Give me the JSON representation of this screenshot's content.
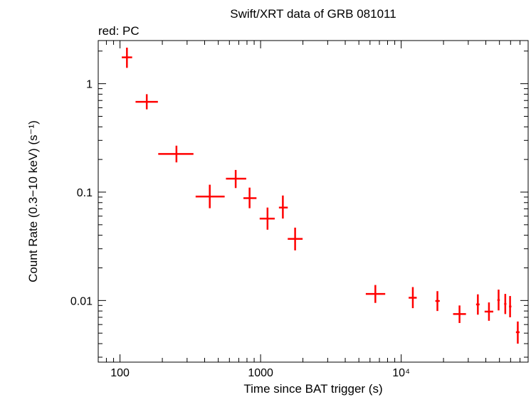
{
  "chart_data": {
    "type": "scatter",
    "title": "Swift/XRT data of GRB 081011",
    "subtitle": "red: PC",
    "xlabel": "Time since BAT trigger (s)",
    "ylabel": "Count Rate (0.3−10 keV) (s⁻¹)",
    "x_scale": "log",
    "y_scale": "log",
    "xlim": [
      70,
      80000
    ],
    "ylim": [
      0.0027,
      2.5
    ],
    "x_ticks": [
      {
        "value": 100,
        "label": "100"
      },
      {
        "value": 1000,
        "label": "1000"
      },
      {
        "value": 10000,
        "label": "10⁴"
      }
    ],
    "y_ticks": [
      {
        "value": 1,
        "label": "1"
      },
      {
        "value": 0.1,
        "label": "0.1"
      },
      {
        "value": 0.01,
        "label": "0.01"
      }
    ],
    "grid": false,
    "series": [
      {
        "name": "PC",
        "color": "#ff0000",
        "points": [
          {
            "x": 112,
            "xlo": 103,
            "xhi": 122,
            "y": 1.75,
            "ylo": 1.4,
            "yhi": 2.15
          },
          {
            "x": 155,
            "xlo": 129,
            "xhi": 186,
            "y": 0.68,
            "ylo": 0.58,
            "yhi": 0.8
          },
          {
            "x": 252,
            "xlo": 187,
            "xhi": 333,
            "y": 0.225,
            "ylo": 0.188,
            "yhi": 0.268
          },
          {
            "x": 435,
            "xlo": 345,
            "xhi": 555,
            "y": 0.091,
            "ylo": 0.071,
            "yhi": 0.117
          },
          {
            "x": 665,
            "xlo": 567,
            "xhi": 790,
            "y": 0.133,
            "ylo": 0.109,
            "yhi": 0.16
          },
          {
            "x": 835,
            "xlo": 755,
            "xhi": 935,
            "y": 0.088,
            "ylo": 0.071,
            "yhi": 0.11
          },
          {
            "x": 1120,
            "xlo": 985,
            "xhi": 1260,
            "y": 0.057,
            "ylo": 0.045,
            "yhi": 0.072
          },
          {
            "x": 1440,
            "xlo": 1350,
            "xhi": 1560,
            "y": 0.072,
            "ylo": 0.057,
            "yhi": 0.093
          },
          {
            "x": 1760,
            "xlo": 1560,
            "xhi": 1990,
            "y": 0.037,
            "ylo": 0.029,
            "yhi": 0.047
          },
          {
            "x": 6550,
            "xlo": 5600,
            "xhi": 7700,
            "y": 0.0115,
            "ylo": 0.0095,
            "yhi": 0.0139
          },
          {
            "x": 12100,
            "xlo": 11300,
            "xhi": 12900,
            "y": 0.0106,
            "ylo": 0.0085,
            "yhi": 0.0133
          },
          {
            "x": 18100,
            "xlo": 17500,
            "xhi": 18800,
            "y": 0.0099,
            "ylo": 0.008,
            "yhi": 0.0122
          },
          {
            "x": 26000,
            "xlo": 23400,
            "xhi": 28900,
            "y": 0.0075,
            "ylo": 0.0062,
            "yhi": 0.009
          },
          {
            "x": 35100,
            "xlo": 34100,
            "xhi": 36100,
            "y": 0.0092,
            "ylo": 0.0074,
            "yhi": 0.0114
          },
          {
            "x": 42100,
            "xlo": 39200,
            "xhi": 45200,
            "y": 0.0079,
            "ylo": 0.0065,
            "yhi": 0.0096
          },
          {
            "x": 49300,
            "xlo": 48300,
            "xhi": 50300,
            "y": 0.0101,
            "ylo": 0.0081,
            "yhi": 0.0126
          },
          {
            "x": 55000,
            "xlo": 54000,
            "xhi": 56000,
            "y": 0.0093,
            "ylo": 0.0075,
            "yhi": 0.0115
          },
          {
            "x": 59500,
            "xlo": 58500,
            "xhi": 60800,
            "y": 0.0088,
            "ylo": 0.007,
            "yhi": 0.011
          },
          {
            "x": 67500,
            "xlo": 65500,
            "xhi": 69500,
            "y": 0.0051,
            "ylo": 0.004,
            "yhi": 0.0064
          }
        ]
      }
    ]
  }
}
